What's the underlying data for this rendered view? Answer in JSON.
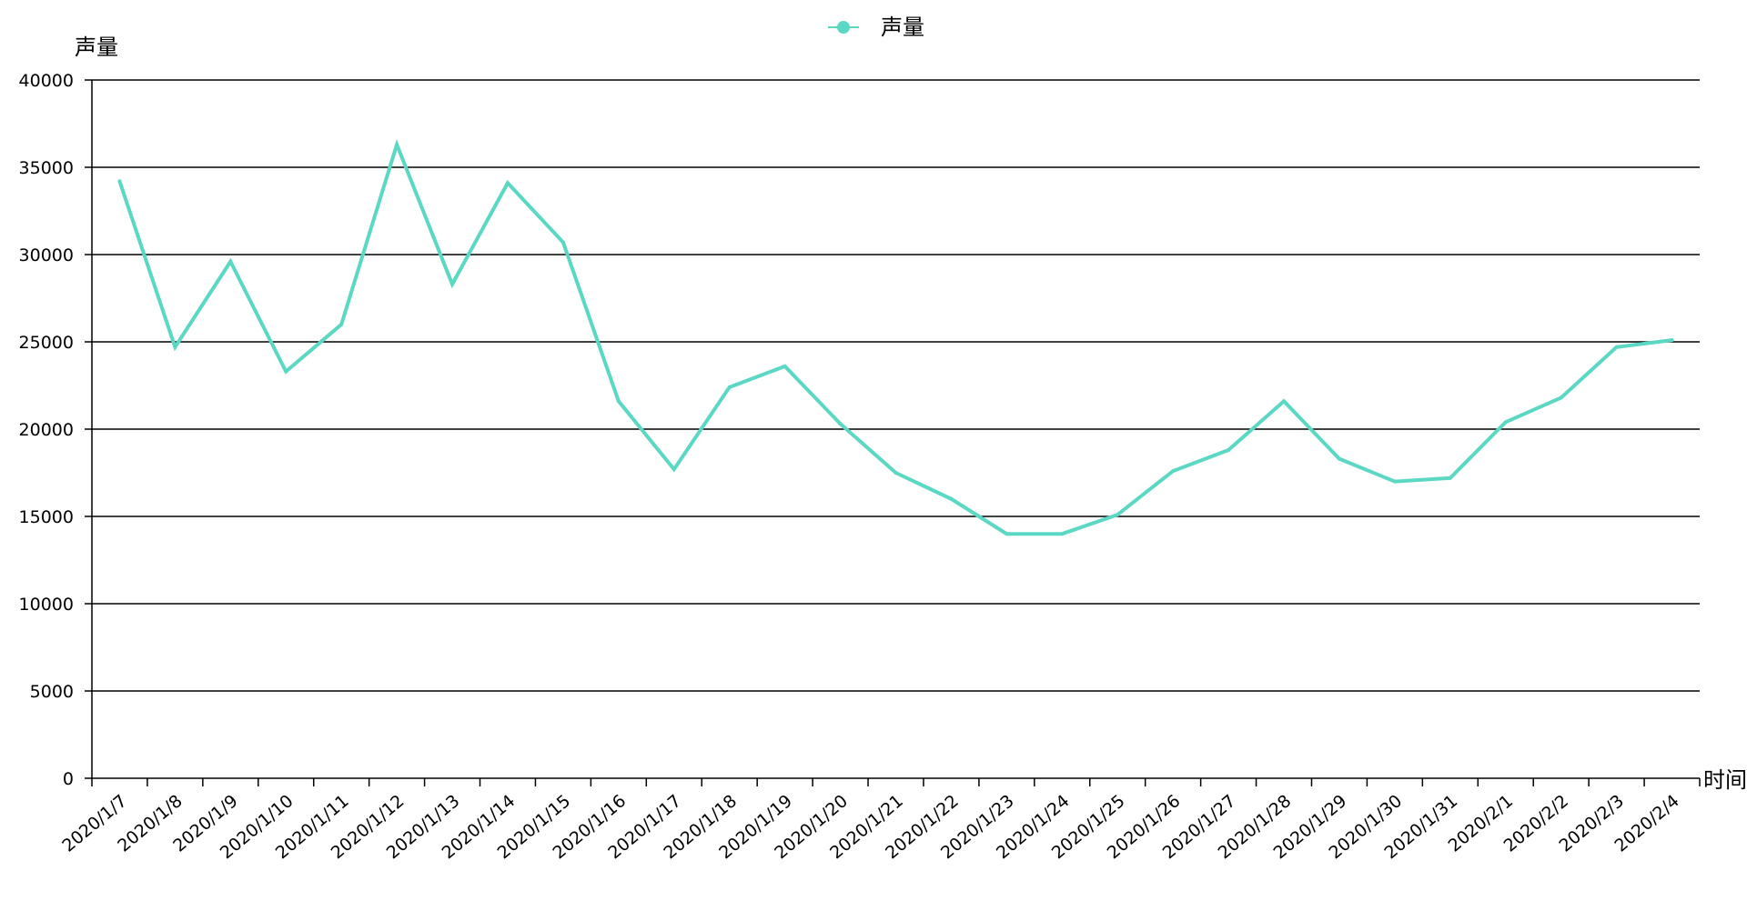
{
  "chart_data": {
    "type": "line",
    "title": "",
    "xlabel": "时间",
    "ylabel": "声量",
    "ylim": [
      0,
      40000
    ],
    "y_ticks": [
      0,
      5000,
      10000,
      15000,
      20000,
      25000,
      30000,
      35000,
      40000
    ],
    "grid": true,
    "legend_position": "top-center",
    "categories": [
      "2020/1/7",
      "2020/1/8",
      "2020/1/9",
      "2020/1/10",
      "2020/1/11",
      "2020/1/12",
      "2020/1/13",
      "2020/1/14",
      "2020/1/15",
      "2020/1/16",
      "2020/1/17",
      "2020/1/18",
      "2020/1/19",
      "2020/1/20",
      "2020/1/21",
      "2020/1/22",
      "2020/1/23",
      "2020/1/24",
      "2020/1/25",
      "2020/1/26",
      "2020/1/27",
      "2020/1/28",
      "2020/1/29",
      "2020/1/30",
      "2020/1/31",
      "2020/2/1",
      "2020/2/2",
      "2020/2/3",
      "2020/2/4"
    ],
    "series": [
      {
        "name": "声量",
        "color": "#5ad8c4",
        "values": [
          34200,
          24700,
          29600,
          23300,
          26000,
          36300,
          28300,
          34100,
          30700,
          21600,
          17700,
          22400,
          23600,
          20300,
          17500,
          16000,
          14000,
          14000,
          15100,
          17600,
          18800,
          21600,
          18300,
          17000,
          17200,
          20400,
          21800,
          24700,
          25100
        ]
      }
    ]
  }
}
